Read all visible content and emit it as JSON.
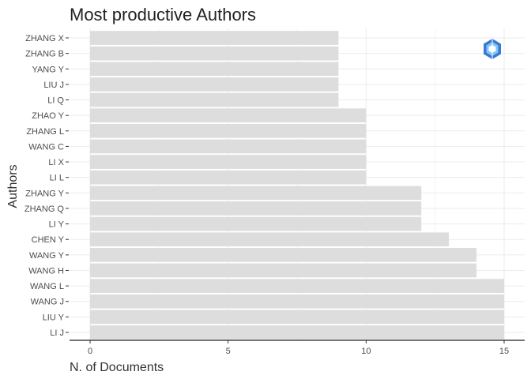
{
  "chart_data": {
    "type": "bar",
    "orientation": "horizontal",
    "title": "Most productive Authors",
    "xlabel": "N. of Documents",
    "ylabel": "Authors",
    "categories": [
      "ZHANG X",
      "ZHANG B",
      "YANG Y",
      "LIU J",
      "LI Q",
      "ZHAO Y",
      "ZHANG L",
      "WANG C",
      "LI X",
      "LI L",
      "ZHANG Y",
      "ZHANG Q",
      "LI Y",
      "CHEN Y",
      "WANG Y",
      "WANG H",
      "WANG L",
      "WANG J",
      "LIU Y",
      "LI J"
    ],
    "values": [
      9,
      9,
      9,
      9,
      9,
      10,
      10,
      10,
      10,
      10,
      12,
      12,
      12,
      13,
      14,
      14,
      15,
      15,
      15,
      15
    ],
    "xlim": [
      0,
      15
    ],
    "xticks": [
      "0",
      "5",
      "10",
      "15"
    ],
    "grid": true,
    "bar_color": "#dddddd",
    "logo_icon": "bibliometrix-logo-icon"
  }
}
